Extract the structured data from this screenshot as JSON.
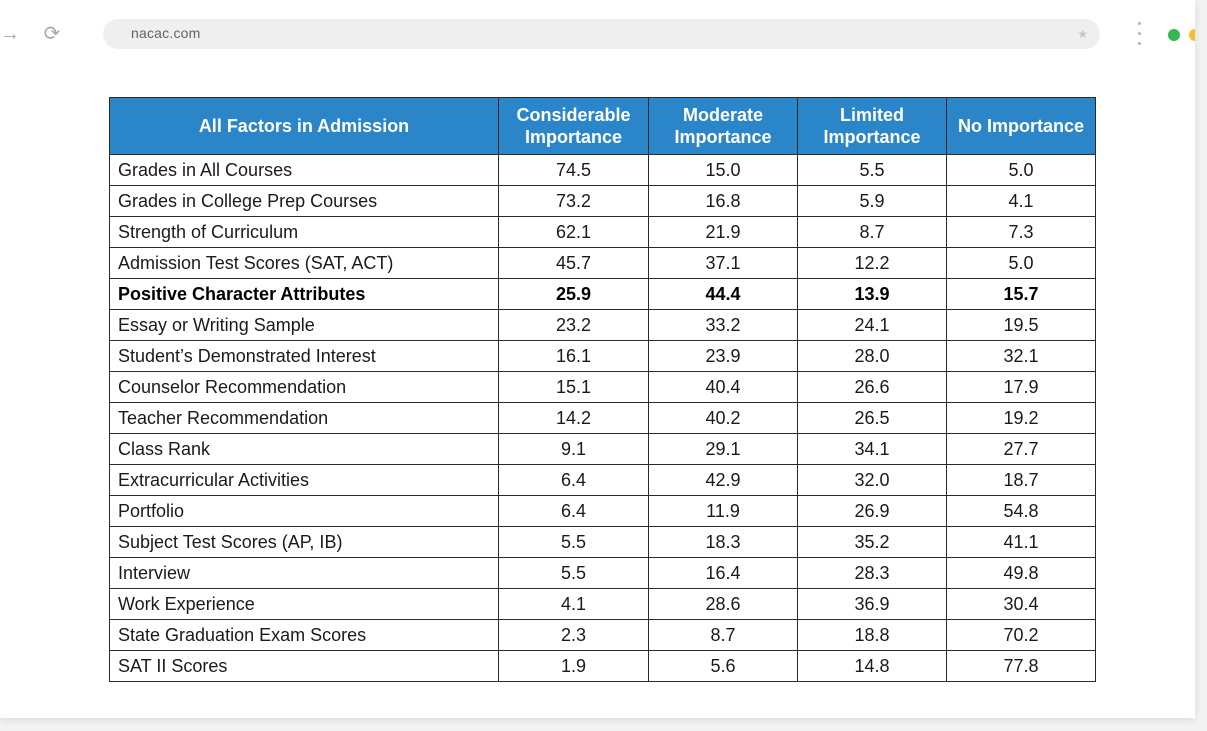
{
  "browser": {
    "url": "nacac.com",
    "forward_glyph": "→",
    "reload_glyph": "⟳",
    "star_glyph": "★",
    "forward_icon": "arrow-forward-icon",
    "reload_icon": "reload-icon",
    "star_icon": "bookmark-star-icon",
    "menu_icon": "kebab-menu-icon",
    "status_colors": [
      "#34b94f",
      "#f5bf2a"
    ]
  },
  "table": {
    "header_color": "#2a86c8",
    "headers": [
      "All Factors in Admission",
      "Considerable Importance",
      "Moderate Importance",
      "Limited Importance",
      "No Importance"
    ],
    "rows": [
      {
        "factor": "Grades in All Courses",
        "considerable": "74.5",
        "moderate": "15.0",
        "limited": "5.5",
        "none": "5.0",
        "bold": false
      },
      {
        "factor": "Grades in College Prep Courses",
        "considerable": "73.2",
        "moderate": "16.8",
        "limited": "5.9",
        "none": "4.1",
        "bold": false
      },
      {
        "factor": "Strength of Curriculum",
        "considerable": "62.1",
        "moderate": "21.9",
        "limited": "8.7",
        "none": "7.3",
        "bold": false
      },
      {
        "factor": "Admission Test Scores (SAT, ACT)",
        "considerable": "45.7",
        "moderate": "37.1",
        "limited": "12.2",
        "none": "5.0",
        "bold": false
      },
      {
        "factor": "Positive Character Attributes",
        "considerable": "25.9",
        "moderate": "44.4",
        "limited": "13.9",
        "none": "15.7",
        "bold": true
      },
      {
        "factor": "Essay or Writing Sample",
        "considerable": "23.2",
        "moderate": "33.2",
        "limited": "24.1",
        "none": "19.5",
        "bold": false
      },
      {
        "factor": "Student’s Demonstrated Interest",
        "considerable": "16.1",
        "moderate": "23.9",
        "limited": "28.0",
        "none": "32.1",
        "bold": false
      },
      {
        "factor": "Counselor Recommendation",
        "considerable": "15.1",
        "moderate": "40.4",
        "limited": "26.6",
        "none": "17.9",
        "bold": false
      },
      {
        "factor": "Teacher Recommendation",
        "considerable": "14.2",
        "moderate": "40.2",
        "limited": "26.5",
        "none": "19.2",
        "bold": false
      },
      {
        "factor": "Class Rank",
        "considerable": "9.1",
        "moderate": "29.1",
        "limited": "34.1",
        "none": "27.7",
        "bold": false
      },
      {
        "factor": "Extracurricular Activities",
        "considerable": "6.4",
        "moderate": "42.9",
        "limited": "32.0",
        "none": "18.7",
        "bold": false
      },
      {
        "factor": "Portfolio",
        "considerable": "6.4",
        "moderate": "11.9",
        "limited": "26.9",
        "none": "54.8",
        "bold": false
      },
      {
        "factor": "Subject Test Scores (AP, IB)",
        "considerable": "5.5",
        "moderate": "18.3",
        "limited": "35.2",
        "none": "41.1",
        "bold": false
      },
      {
        "factor": "Interview",
        "considerable": "5.5",
        "moderate": "16.4",
        "limited": "28.3",
        "none": "49.8",
        "bold": false
      },
      {
        "factor": "Work Experience",
        "considerable": "4.1",
        "moderate": "28.6",
        "limited": "36.9",
        "none": "30.4",
        "bold": false
      },
      {
        "factor": "State Graduation Exam Scores",
        "considerable": "2.3",
        "moderate": "8.7",
        "limited": "18.8",
        "none": "70.2",
        "bold": false
      },
      {
        "factor": "SAT II Scores",
        "considerable": "1.9",
        "moderate": "5.6",
        "limited": "14.8",
        "none": "77.8",
        "bold": false
      }
    ]
  }
}
